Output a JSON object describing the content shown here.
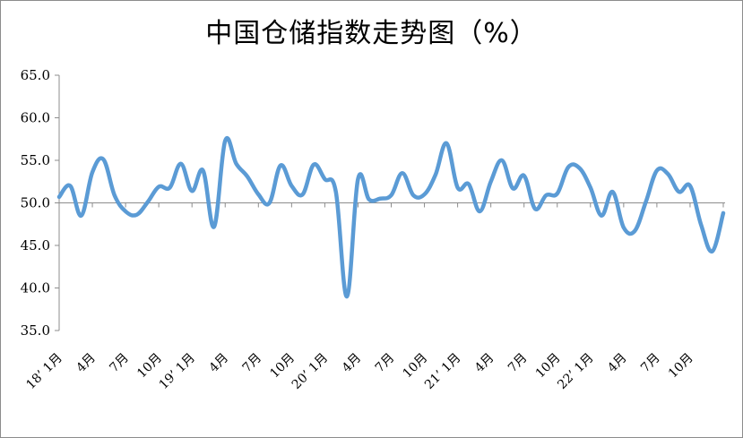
{
  "chart_data": {
    "type": "line",
    "title": "中国仓储指数走势图（%）",
    "ylim": [
      35,
      65
    ],
    "yticks": [
      "35.0",
      "40.0",
      "45.0",
      "50.0",
      "55.0",
      "60.0",
      "65.0"
    ],
    "reference_line": 50,
    "line_color": "#5b9bd5",
    "x_labels": [
      {
        "index": 0,
        "label": "18’ 1月"
      },
      {
        "index": 3,
        "label": "4月"
      },
      {
        "index": 6,
        "label": "7月"
      },
      {
        "index": 9,
        "label": "10月"
      },
      {
        "index": 12,
        "label": "19’ 1月"
      },
      {
        "index": 15,
        "label": "4月"
      },
      {
        "index": 18,
        "label": "7月"
      },
      {
        "index": 21,
        "label": "10月"
      },
      {
        "index": 24,
        "label": "20’ 1月"
      },
      {
        "index": 27,
        "label": "4月"
      },
      {
        "index": 30,
        "label": "7月"
      },
      {
        "index": 33,
        "label": "10月"
      },
      {
        "index": 36,
        "label": "21’ 1月"
      },
      {
        "index": 39,
        "label": "4月"
      },
      {
        "index": 42,
        "label": "7月"
      },
      {
        "index": 45,
        "label": "10月"
      },
      {
        "index": 48,
        "label": "22’ 1月"
      },
      {
        "index": 51,
        "label": "4月"
      },
      {
        "index": 54,
        "label": "7月"
      },
      {
        "index": 57,
        "label": "10月"
      }
    ],
    "values": [
      50.7,
      52.0,
      48.5,
      53.6,
      55.1,
      50.9,
      49.0,
      48.6,
      50.1,
      51.9,
      51.8,
      54.6,
      51.4,
      53.8,
      47.2,
      57.3,
      54.6,
      53.1,
      51.0,
      50.0,
      54.4,
      52.0,
      51.0,
      54.5,
      52.8,
      51.3,
      39.0,
      52.8,
      50.4,
      50.5,
      50.9,
      53.5,
      50.9,
      51.0,
      53.3,
      57.0,
      51.8,
      52.2,
      49.0,
      52.5,
      55.0,
      51.7,
      53.2,
      49.3,
      50.9,
      51.1,
      54.2,
      54.1,
      51.8,
      48.5,
      51.3,
      47.1,
      46.7,
      50.1,
      53.8,
      53.4,
      51.3,
      52.0,
      47.4,
      44.3,
      48.8
    ]
  }
}
